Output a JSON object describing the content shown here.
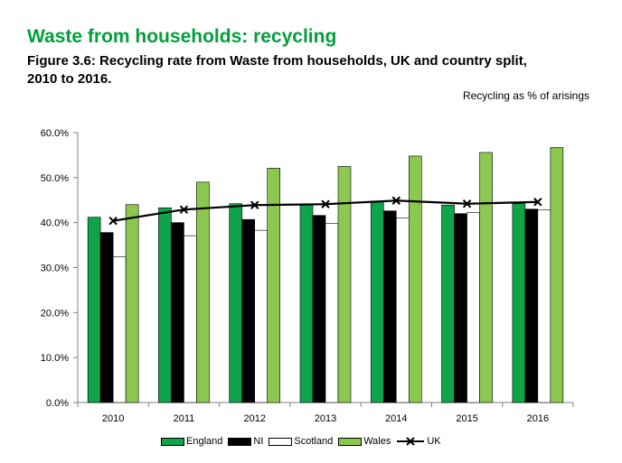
{
  "page_title": "Waste from households: recycling",
  "figure_title_line1": "Figure 3.6: Recycling rate from Waste from households, UK and country split,",
  "figure_title_line2": "2010 to 2016.",
  "units_note": "Recycling as % of arisings",
  "colors": {
    "title": "#00a13a",
    "England": "#0fa34a",
    "NI": "#000000",
    "Scotland": "#ffffff",
    "Wales": "#8cc850",
    "UK": "#000000"
  },
  "chart_data": {
    "type": "bar",
    "categories": [
      "2010",
      "2011",
      "2012",
      "2013",
      "2014",
      "2015",
      "2016"
    ],
    "series": [
      {
        "name": "England",
        "type": "bar",
        "values": [
          41.2,
          43.3,
          44.2,
          44.1,
          44.8,
          43.9,
          44.2
        ]
      },
      {
        "name": "NI",
        "type": "bar",
        "values": [
          37.8,
          40.0,
          40.7,
          41.6,
          42.6,
          42.0,
          43.0
        ]
      },
      {
        "name": "Scotland",
        "type": "bar",
        "values": [
          32.4,
          37.1,
          38.3,
          39.8,
          41.0,
          42.2,
          42.8
        ]
      },
      {
        "name": "Wales",
        "type": "bar",
        "values": [
          44.0,
          49.0,
          52.1,
          52.5,
          54.8,
          55.6,
          56.7
        ]
      },
      {
        "name": "UK",
        "type": "line",
        "values": [
          40.4,
          42.9,
          43.9,
          44.1,
          44.9,
          44.2,
          44.6
        ]
      }
    ],
    "ylim": [
      0,
      60
    ],
    "yticks": [
      0,
      10,
      20,
      30,
      40,
      50,
      60
    ],
    "ytick_labels": [
      "0.0%",
      "10.0%",
      "20.0%",
      "30.0%",
      "40.0%",
      "50.0%",
      "60.0%"
    ],
    "ylabel": "Recycling as % of arisings",
    "xlabel": "",
    "grid": false,
    "legend_position": "bottom"
  },
  "legend": [
    {
      "label": "England",
      "kind": "bar"
    },
    {
      "label": "NI",
      "kind": "bar"
    },
    {
      "label": "Scotland",
      "kind": "bar"
    },
    {
      "label": "Wales",
      "kind": "bar"
    },
    {
      "label": "UK",
      "kind": "line"
    }
  ]
}
